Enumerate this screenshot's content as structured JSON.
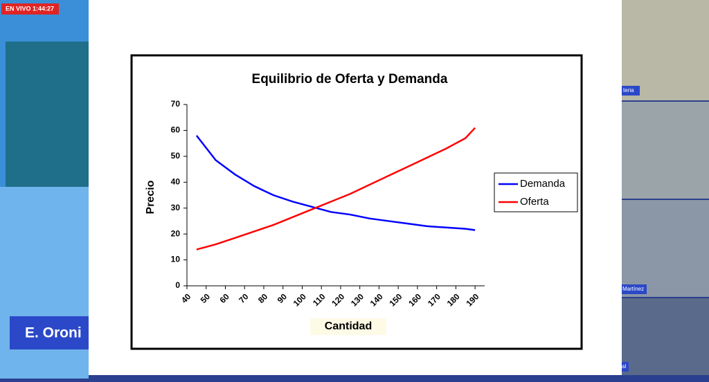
{
  "live_badge": "EN VIVO 1:44:27",
  "presenter_name": "E. Oroni",
  "participants": [
    "teria",
    "Martínez",
    "al"
  ],
  "chart_data": {
    "type": "line",
    "title": "Equilibrio de Oferta y Demanda",
    "x_label": "Cantidad",
    "y_label": "Precio",
    "x": [
      45,
      55,
      65,
      75,
      85,
      95,
      105,
      115,
      125,
      135,
      145,
      155,
      165,
      175,
      185,
      190
    ],
    "series": [
      {
        "name": "Demanda",
        "color": "#0000ff",
        "values": [
          58,
          48.5,
          43,
          38.5,
          35,
          32.5,
          30.5,
          28.5,
          27.5,
          26,
          25,
          24,
          23,
          22.5,
          22,
          21.5
        ]
      },
      {
        "name": "Oferta",
        "color": "#ff0000",
        "values": [
          14,
          16,
          18.5,
          21,
          23.5,
          26.5,
          29.5,
          32.5,
          35.5,
          39,
          42.5,
          46,
          49.5,
          53,
          57,
          61
        ]
      }
    ],
    "xlim": [
      40,
      195
    ],
    "ylim": [
      0,
      70
    ],
    "xticks": [
      40,
      50,
      60,
      70,
      80,
      90,
      100,
      110,
      120,
      130,
      140,
      150,
      160,
      170,
      180,
      190
    ],
    "yticks": [
      0,
      10,
      20,
      30,
      40,
      50,
      60,
      70
    ],
    "legend": "right"
  }
}
